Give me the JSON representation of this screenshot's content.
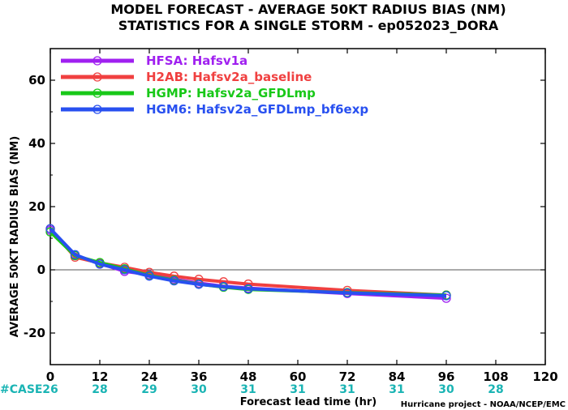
{
  "chart_data": {
    "type": "line",
    "title": "MODEL FORECAST - AVERAGE 50KT RADIUS BIAS (NM)",
    "subtitle": "STATISTICS FOR A SINGLE STORM - ep052023_DORA",
    "xlabel": "Forecast lead time (hr)",
    "ylabel": "AVERAGE 50KT RADIUS BIAS (NM)",
    "xlim": [
      0,
      120
    ],
    "ylim": [
      -30,
      70
    ],
    "xticks": [
      0,
      12,
      24,
      36,
      48,
      60,
      72,
      84,
      96,
      108,
      120
    ],
    "yticks": [
      -20,
      0,
      20,
      40,
      60
    ],
    "zero_line": true,
    "legend_position": "top-left",
    "case_label": "#CASE",
    "cases": [
      {
        "x": 0,
        "n": "26"
      },
      {
        "x": 12,
        "n": "28"
      },
      {
        "x": 24,
        "n": "29"
      },
      {
        "x": 36,
        "n": "30"
      },
      {
        "x": 48,
        "n": "31"
      },
      {
        "x": 60,
        "n": "31"
      },
      {
        "x": 72,
        "n": "31"
      },
      {
        "x": 84,
        "n": "31"
      },
      {
        "x": 96,
        "n": "30"
      },
      {
        "x": 108,
        "n": "28"
      }
    ],
    "credit": "Hurricane project - NOAA/NCEP/EMC",
    "series": [
      {
        "name": "HFSA:  Hafsv1a",
        "color": "#a020f0",
        "x": [
          0,
          6,
          12,
          18,
          24,
          30,
          36,
          42,
          48,
          72,
          96
        ],
        "y": [
          12.5,
          4.5,
          2.0,
          -0.5,
          -1.5,
          -3.0,
          -4.2,
          -5.2,
          -5.8,
          -7.5,
          -9.0
        ]
      },
      {
        "name": "H2AB:  Hafsv2a_baseline",
        "color": "#f04040",
        "x": [
          0,
          6,
          12,
          18,
          24,
          30,
          36,
          42,
          48,
          72,
          96
        ],
        "y": [
          13.0,
          4.0,
          2.2,
          0.8,
          -0.8,
          -2.0,
          -3.0,
          -3.8,
          -4.5,
          -6.5,
          -8.0
        ]
      },
      {
        "name": "HGMP:  Hafsv2a_GFDLmp",
        "color": "#18c818",
        "x": [
          0,
          6,
          12,
          18,
          24,
          30,
          36,
          42,
          48,
          72,
          96
        ],
        "y": [
          12.0,
          4.5,
          2.3,
          0.3,
          -1.8,
          -3.3,
          -4.5,
          -5.5,
          -6.2,
          -7.2,
          -8.0
        ]
      },
      {
        "name": "HGM6:  Hafsv2a_GFDLmp_bf6exp",
        "color": "#2850f0",
        "x": [
          0,
          6,
          12,
          18,
          24,
          30,
          36,
          42,
          48,
          72,
          96
        ],
        "y": [
          13.0,
          4.8,
          1.8,
          0.0,
          -2.0,
          -3.5,
          -4.6,
          -5.3,
          -6.0,
          -7.3,
          -8.2
        ]
      }
    ]
  }
}
